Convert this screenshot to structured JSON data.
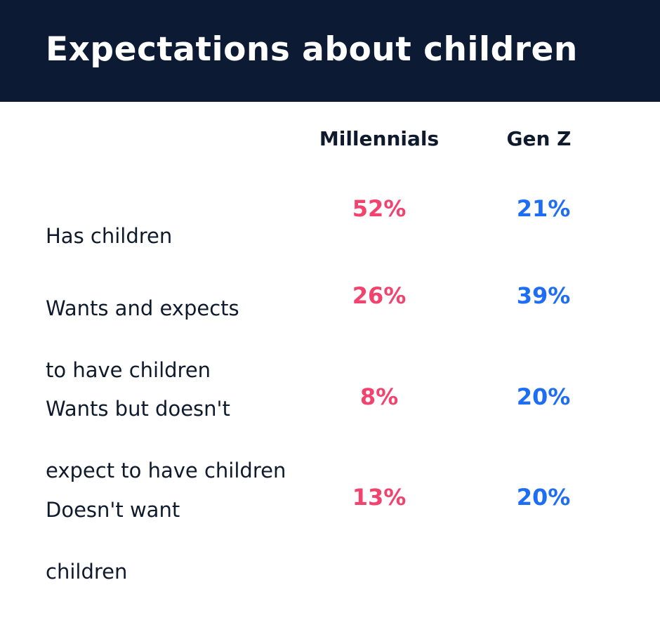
{
  "header": {
    "title": "Expectations about children"
  },
  "colors": {
    "header_bg": "#0c1a33",
    "millennials": "#f2426e",
    "gen_z": "#1e6ef5"
  },
  "chart_data": {
    "type": "table",
    "title": "Expectations about children",
    "columns": [
      "Millennials",
      "Gen Z"
    ],
    "rows": [
      {
        "label": "Has children",
        "label_lines": [
          "Has children"
        ],
        "millennials": "52%",
        "gen_z": "21%"
      },
      {
        "label": "Wants and expects to have children",
        "label_lines": [
          "Wants and expects",
          "to have children"
        ],
        "millennials": "26%",
        "gen_z": "39%"
      },
      {
        "label": "Wants but doesn't expect to have children",
        "label_lines": [
          "Wants but doesn't",
          "expect to have children"
        ],
        "millennials": "8%",
        "gen_z": "20%"
      },
      {
        "label": "Doesn't want children",
        "label_lines": [
          "Doesn't want",
          "children"
        ],
        "millennials": "13%",
        "gen_z": "20%"
      }
    ]
  }
}
